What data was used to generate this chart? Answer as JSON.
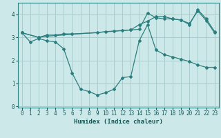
{
  "xlabel": "Humidex (Indice chaleur)",
  "background_color": "#cce8e8",
  "grid_color": "#aacccc",
  "line_color": "#2d7f7f",
  "xlim": [
    -0.5,
    23.5
  ],
  "ylim": [
    -0.05,
    4.5
  ],
  "xticks": [
    0,
    1,
    2,
    3,
    4,
    5,
    6,
    7,
    8,
    9,
    10,
    11,
    12,
    13,
    14,
    15,
    16,
    17,
    18,
    19,
    20,
    21,
    22,
    23
  ],
  "yticks": [
    0,
    1,
    2,
    3,
    4
  ],
  "line1_x": [
    0,
    1,
    2,
    3,
    4,
    5,
    6,
    7,
    8,
    9,
    10,
    11,
    12,
    13,
    14,
    15,
    16,
    17,
    18,
    19,
    20,
    21,
    22,
    23
  ],
  "line1_y": [
    3.2,
    2.8,
    2.95,
    2.85,
    2.8,
    2.5,
    1.45,
    0.75,
    0.65,
    0.5,
    0.6,
    0.75,
    1.25,
    1.3,
    2.85,
    3.55,
    2.45,
    2.25,
    2.15,
    2.05,
    1.95,
    1.8,
    1.7,
    1.7
  ],
  "line2_x": [
    0,
    2,
    3,
    4,
    5,
    6,
    9,
    10,
    11,
    12,
    13,
    14,
    15,
    16,
    17,
    18,
    19,
    20,
    21,
    22,
    23
  ],
  "line2_y": [
    3.2,
    3.0,
    3.1,
    3.1,
    3.15,
    3.15,
    3.2,
    3.25,
    3.27,
    3.3,
    3.32,
    3.35,
    4.05,
    3.85,
    3.8,
    3.8,
    3.75,
    3.55,
    4.2,
    3.8,
    3.25
  ],
  "line3_x": [
    0,
    2,
    3,
    13,
    14,
    15,
    16,
    17,
    18,
    19,
    20,
    21,
    22,
    23
  ],
  "line3_y": [
    3.2,
    3.0,
    3.05,
    3.32,
    3.55,
    3.7,
    3.9,
    3.9,
    3.8,
    3.75,
    3.6,
    4.15,
    3.72,
    3.2
  ]
}
